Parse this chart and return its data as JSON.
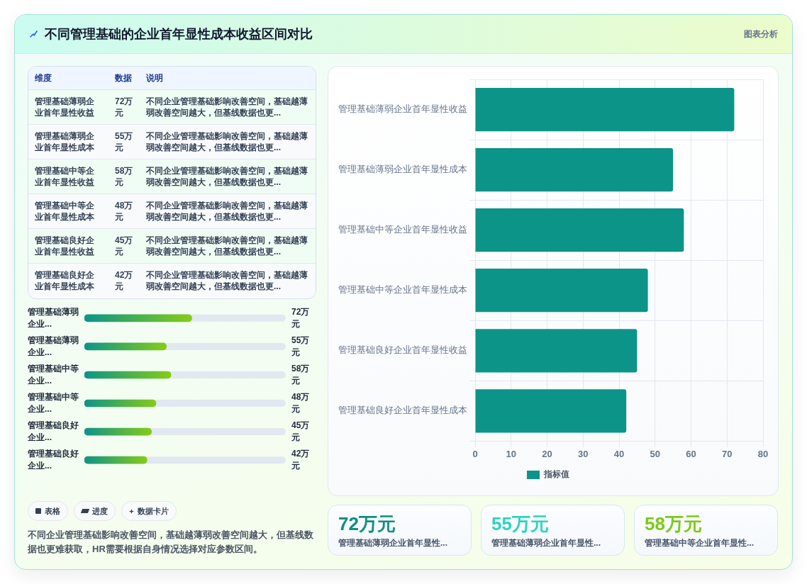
{
  "chart_data": [
    {
      "type": "other",
      "title": "不同管理基础的企业首年显性成本收益区间对比",
      "annotations": [
        "图表分析"
      ]
    },
    {
      "type": "other",
      "categories": [
        "管理基础薄弱企业首年显性收益",
        "管理基础薄弱企业首年显性成本",
        "管理基础中等企业首年显性收益",
        "管理基础中等企业首年显性成本",
        "管理基础良好企业首年显性收益",
        "管理基础良好企业首年显性成本"
      ],
      "value_labels": [
        "72万元",
        "55万元",
        "58万元",
        "48万元",
        "45万元",
        "42万元"
      ],
      "annotations": [
        "维度",
        "数据",
        "说明",
        "不同企业管理基础影响改善空间，基础越薄弱改善空间越大，但基线数据也更...",
        "不同企业管理基础影响改善空间，基础越薄弱改善空间越大，但基线数据也更...",
        "不同企业管理基础影响改善空间，基础越薄弱改善空间越大，但基线数据也更...",
        "不同企业管理基础影响改善空间，基础越薄弱改善空间越大，但基线数据也更...",
        "不同企业管理基础影响改善空间，基础越薄弱改善空间越大，但基线数据也更...",
        "不同企业管理基础影响改善空间，基础越薄弱改善空间越大，但基线数据也更..."
      ]
    },
    {
      "type": "bar",
      "orientation": "horizontal",
      "categories": [
        "管理基础薄弱企业首年显性收益",
        "管理基础薄弱企业首年显性成本",
        "管理基础中等企业首年显性收益",
        "管理基础中等企业首年显性成本",
        "管理基础良好企业首年显性收益",
        "管理基础良好企业首年显性成本"
      ],
      "series": [
        {
          "name": "指标值",
          "color": "#0d9488",
          "values": [
            72,
            55,
            58,
            48,
            45,
            42
          ]
        }
      ],
      "xlim": [
        0,
        80
      ],
      "xticks": [
        0,
        10,
        20,
        30,
        40,
        50,
        60,
        70,
        80
      ],
      "grid": true,
      "legend": "bottom"
    },
    {
      "type": "bar",
      "orientation": "horizontal",
      "categories": [
        "管理基础薄弱企业...",
        "管理基础薄弱企业...",
        "管理基础中等企业...",
        "管理基础中等企业...",
        "管理基础良好企业...",
        "管理基础良好企业..."
      ],
      "values": [
        72,
        55,
        58,
        48,
        45,
        42
      ],
      "value_labels": [
        "72万元",
        "55万元",
        "58万元",
        "48万元",
        "45万元",
        "42万元"
      ],
      "color": "#0d9488",
      "xlim": [
        0,
        135
      ],
      "tick_labels": "y"
    },
    {
      "type": "other",
      "categories": [
        "表格",
        "进度",
        "数据卡片"
      ],
      "annotations": [
        "不同企业管理基础影响改善空间，基础越薄弱改善空间越大，但基线数据也更难获取，HR需要根据自身情况选择对应参数区间。"
      ]
    },
    {
      "type": "other",
      "categories": [
        "管理基础薄弱企业首年显性...",
        "管理基础薄弱企业首年显性...",
        "管理基础中等企业首年显性..."
      ],
      "value_labels": [
        "72万元",
        "55万元",
        "58万元"
      ]
    }
  ]
}
